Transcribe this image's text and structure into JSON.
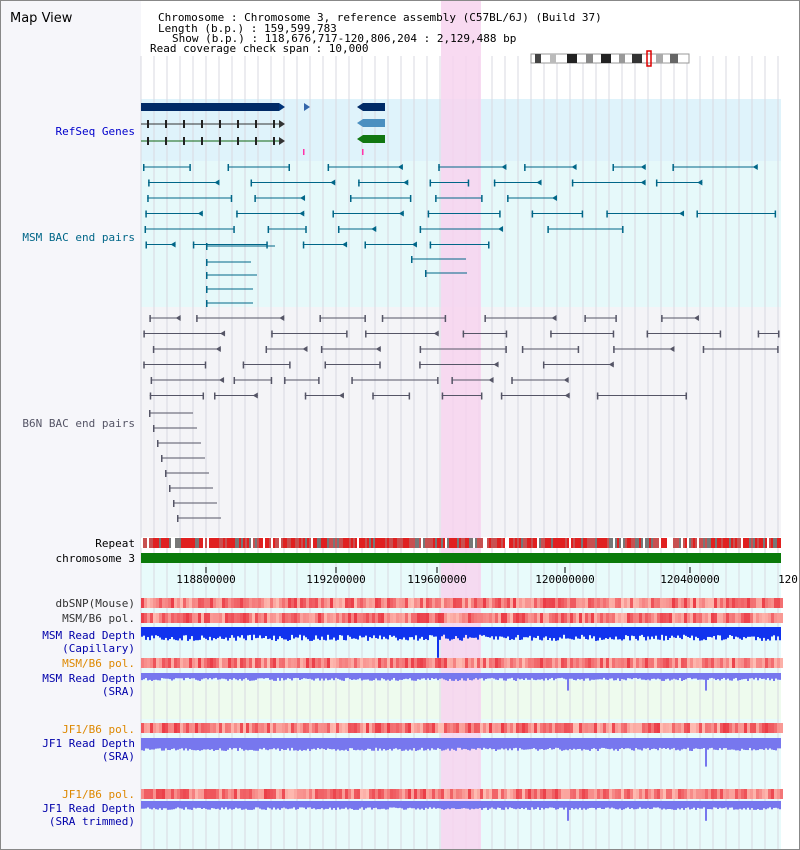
{
  "view_title": "Map View",
  "header": {
    "chromosome_line": "Chromosome    : Chromosome 3, reference assembly (C57BL/6J) (Build 37)",
    "length_line": "Length (b.p.) : 159,599,783",
    "show_line": "Show (b.p.) : 118,676,717-120,806,204 : 2,129,488 bp",
    "coverage_line": "Read coverage check span : 10,000"
  },
  "tracks": {
    "refseq": "RefSeq Genes",
    "msm_bac": "MSM BAC end pairs",
    "b6n_bac": "B6N BAC end pairs",
    "repeat": "Repeat",
    "chromosome": "chromosome 3",
    "dbsnp": "dbSNP(Mouse)",
    "msm_b6_pol_1": "MSM/B6 pol.",
    "msm_depth_cap_1": "MSM Read Depth",
    "msm_depth_cap_2": "(Capillary)",
    "msm_b6_pol_2": "MSM/B6 pol.",
    "msm_depth_sra_1": "MSM Read Depth",
    "msm_depth_sra_2": "(SRA)",
    "jf1_b6_pol_1": "JF1/B6 pol.",
    "jf1_depth_sra_1": "JF1 Read Depth",
    "jf1_depth_sra_2": "(SRA)",
    "jf1_b6_pol_2": "JF1/B6 pol.",
    "jf1_depth_trim_1": "JF1 Read Depth",
    "jf1_depth_trim_2": "(SRA trimmed)"
  },
  "axis": {
    "ticks": [
      "118800000",
      "119200000",
      "119600000",
      "120000000",
      "120400000",
      "120"
    ]
  },
  "colors": {
    "refseq_label": "#0000cc",
    "msm_label": "#006688",
    "b6n_label": "#555566",
    "pol_label_orange": "#dd8800",
    "depth_label_blue": "#0000aa",
    "highlight": "#f8d8f0"
  }
}
